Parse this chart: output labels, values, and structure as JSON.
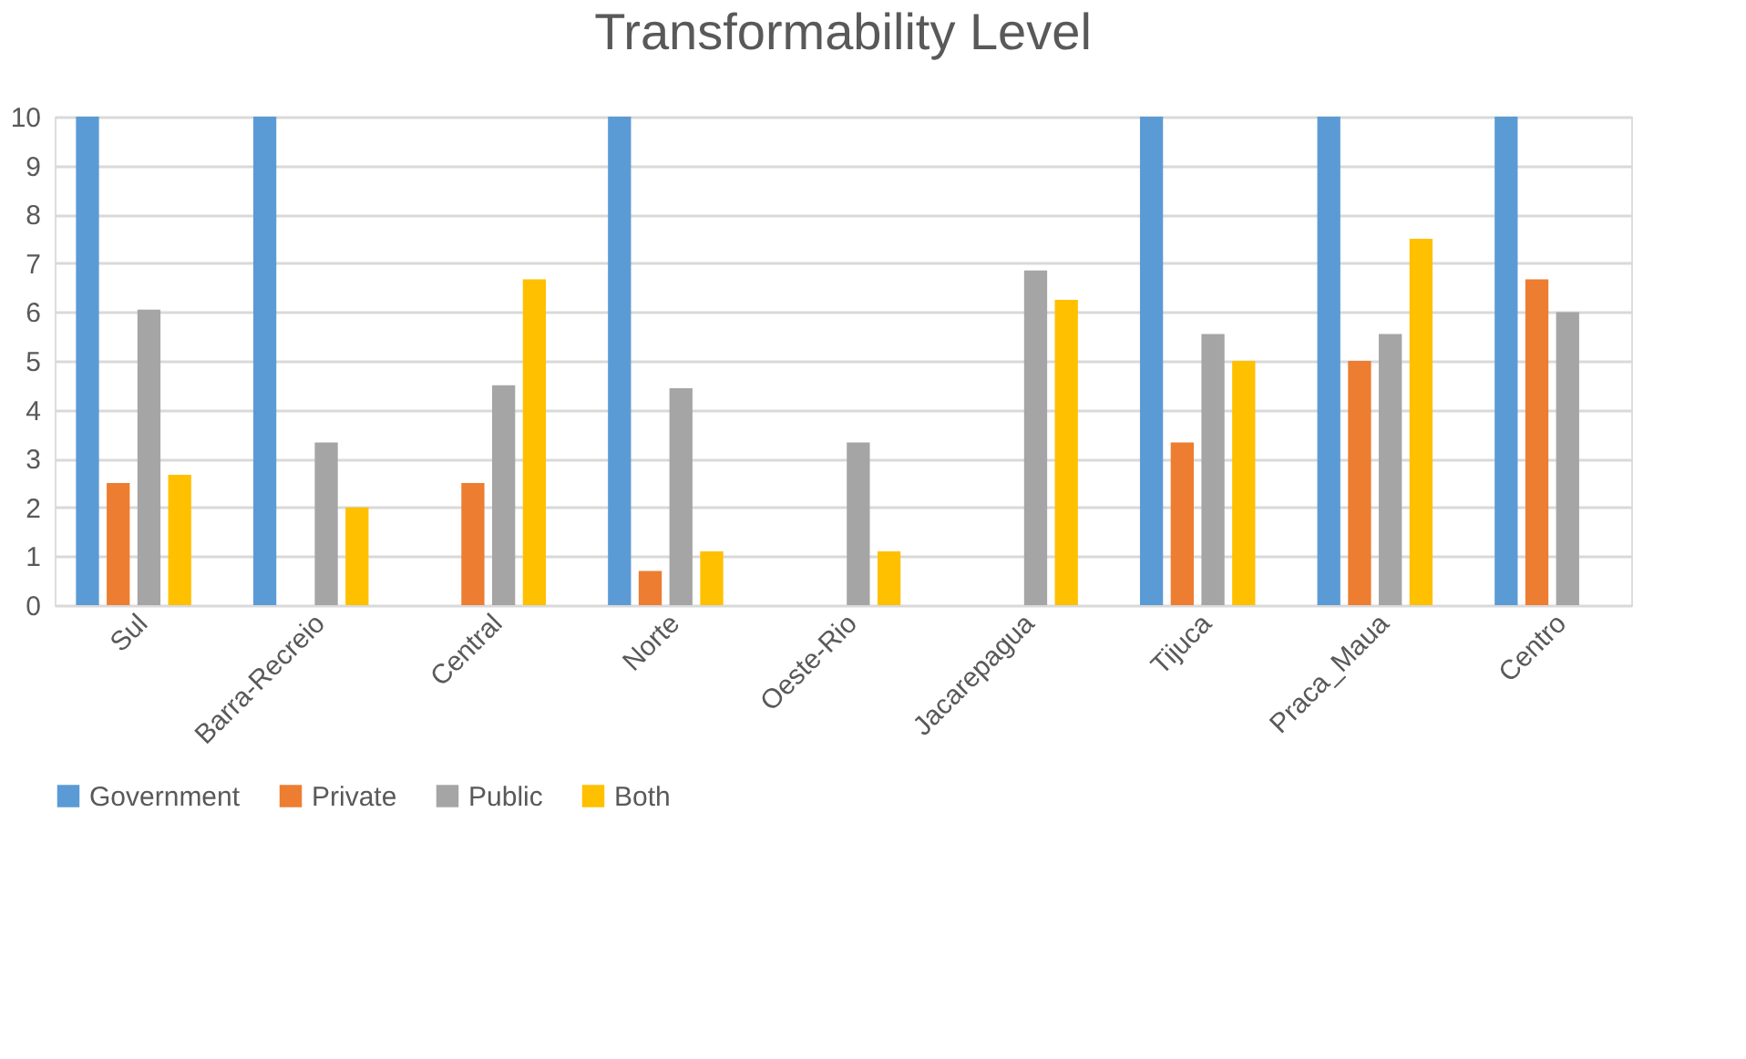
{
  "chart_data": {
    "type": "bar",
    "title": "Transformability Level",
    "categories": [
      "Sul",
      "Barra-Recreio",
      "Central",
      "Norte",
      "Oeste-Rio",
      "Jacarepagua",
      "Tijuca",
      "Praca_Maua",
      "Centro"
    ],
    "series": [
      {
        "name": "Government",
        "color": "#5b9bd5",
        "values": [
          10,
          10,
          null,
          10,
          null,
          null,
          10,
          10,
          10
        ]
      },
      {
        "name": "Private",
        "color": "#ed7d31",
        "values": [
          2.5,
          null,
          2.5,
          0.7,
          null,
          null,
          3.33,
          5,
          6.67
        ]
      },
      {
        "name": "Public",
        "color": "#a5a5a5",
        "values": [
          6.05,
          3.33,
          4.5,
          4.44,
          3.33,
          6.85,
          5.55,
          5.55,
          6
        ]
      },
      {
        "name": "Both",
        "color": "#ffc000",
        "values": [
          2.67,
          2,
          6.67,
          1.1,
          1.1,
          6.25,
          5,
          7.5,
          null
        ]
      }
    ],
    "ylim": [
      0,
      10
    ],
    "yticks": [
      0,
      1,
      2,
      3,
      4,
      5,
      6,
      7,
      8,
      9,
      10
    ],
    "grid": "y",
    "legend": "bottom"
  }
}
